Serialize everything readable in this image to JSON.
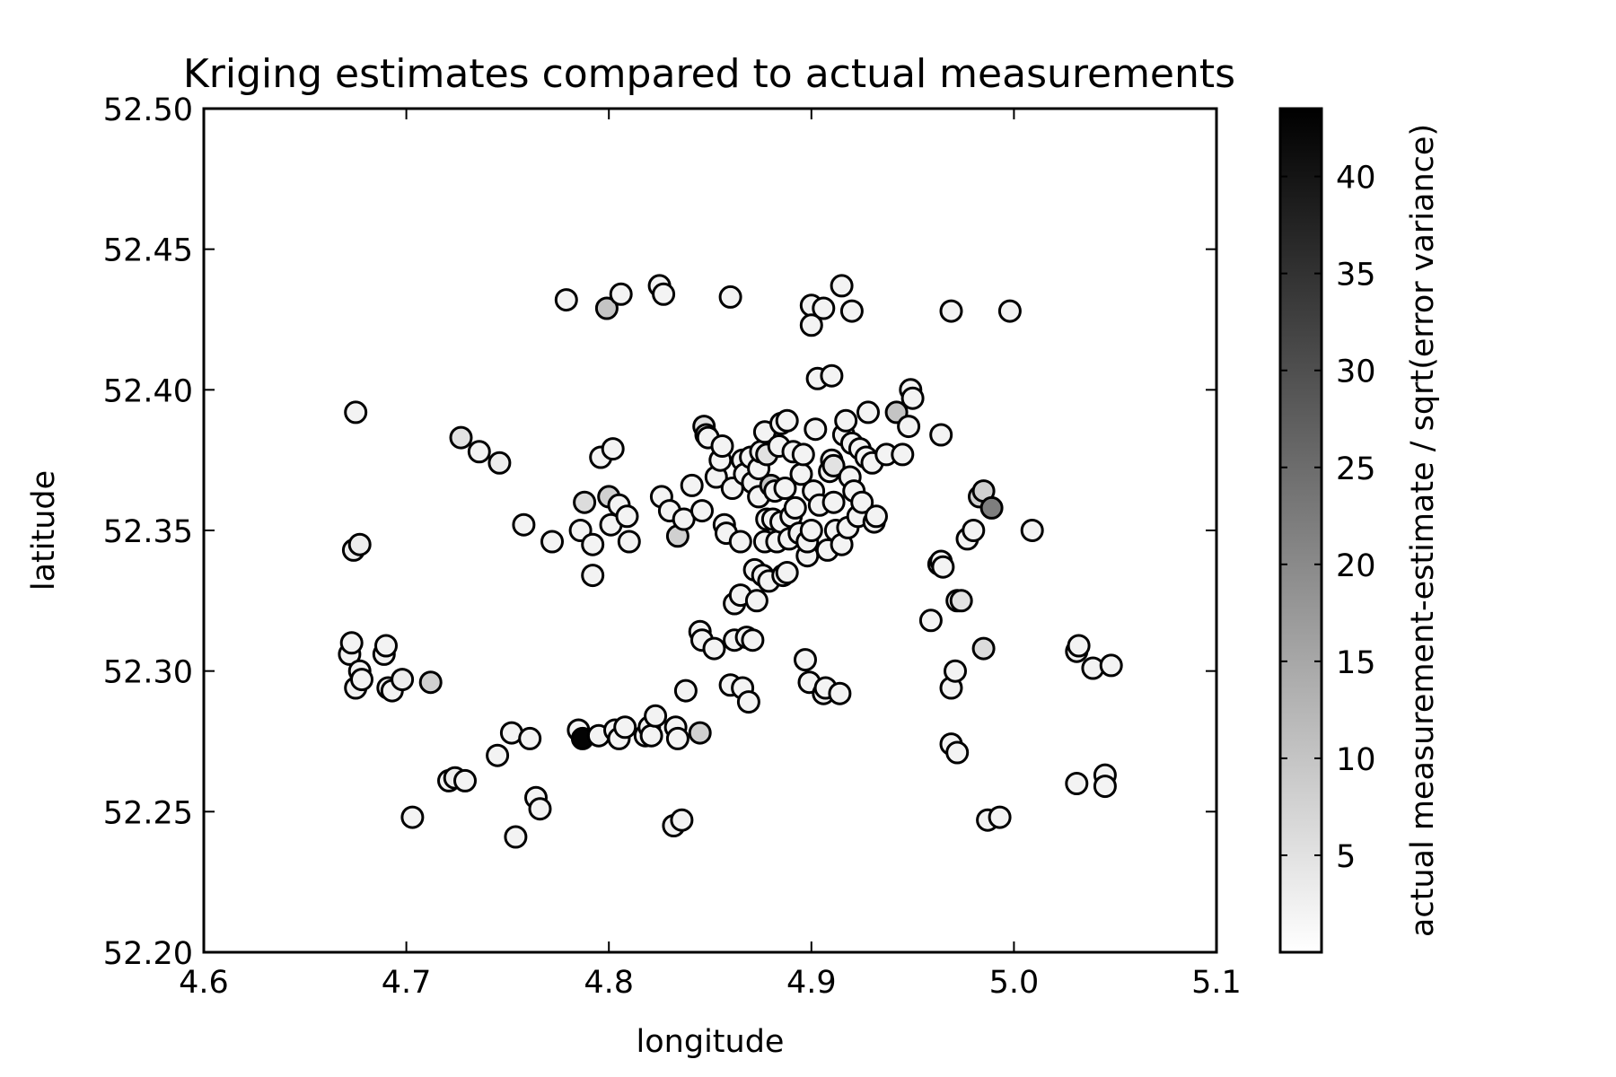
{
  "chart_data": {
    "type": "scatter",
    "title": "Kriging estimates compared to actual measurements",
    "xlabel": "longitude",
    "ylabel": "latitude",
    "xlim": [
      4.6,
      5.1
    ],
    "ylim": [
      52.2,
      52.5
    ],
    "xticks": [
      "4.6",
      "4.7",
      "4.8",
      "4.9",
      "5.0",
      "5.1"
    ],
    "yticks": [
      "52.20",
      "52.25",
      "52.30",
      "52.35",
      "52.40",
      "52.45",
      "52.50"
    ],
    "grid": false,
    "colormap": "gray_r",
    "marker_edge_color": "#000000",
    "colorbar": {
      "label": "actual measurement-estimate / sqrt(error variance)",
      "range": [
        0,
        43.5
      ],
      "ticks": [
        "5",
        "10",
        "15",
        "20",
        "25",
        "30",
        "35",
        "40"
      ]
    },
    "points": [
      [
        4.675,
        52.392,
        2
      ],
      [
        4.674,
        52.343,
        3
      ],
      [
        4.677,
        52.345,
        3
      ],
      [
        4.672,
        52.306,
        2
      ],
      [
        4.673,
        52.31,
        2
      ],
      [
        4.675,
        52.294,
        2
      ],
      [
        4.677,
        52.3,
        2
      ],
      [
        4.678,
        52.297,
        2
      ],
      [
        4.689,
        52.306,
        2
      ],
      [
        4.69,
        52.309,
        2
      ],
      [
        4.691,
        52.294,
        2
      ],
      [
        4.693,
        52.293,
        2
      ],
      [
        4.698,
        52.297,
        3
      ],
      [
        4.712,
        52.296,
        8
      ],
      [
        4.703,
        52.248,
        2
      ],
      [
        4.721,
        52.261,
        2
      ],
      [
        4.724,
        52.262,
        3
      ],
      [
        4.729,
        52.261,
        2
      ],
      [
        4.727,
        52.383,
        5
      ],
      [
        4.736,
        52.378,
        2
      ],
      [
        4.746,
        52.374,
        3
      ],
      [
        4.745,
        52.27,
        2
      ],
      [
        4.752,
        52.278,
        2
      ],
      [
        4.754,
        52.241,
        2
      ],
      [
        4.758,
        52.352,
        2
      ],
      [
        4.761,
        52.276,
        2
      ],
      [
        4.764,
        52.255,
        2
      ],
      [
        4.766,
        52.251,
        2
      ],
      [
        4.772,
        52.346,
        2
      ],
      [
        4.779,
        52.432,
        2
      ],
      [
        4.785,
        52.279,
        2
      ],
      [
        4.786,
        52.35,
        2
      ],
      [
        4.787,
        52.276,
        43
      ],
      [
        4.788,
        52.36,
        6
      ],
      [
        4.792,
        52.334,
        2
      ],
      [
        4.792,
        52.345,
        2
      ],
      [
        4.795,
        52.277,
        2
      ],
      [
        4.796,
        52.376,
        2
      ],
      [
        4.799,
        52.429,
        10
      ],
      [
        4.8,
        52.362,
        8
      ],
      [
        4.801,
        52.352,
        2
      ],
      [
        4.802,
        52.379,
        2
      ],
      [
        4.803,
        52.279,
        2
      ],
      [
        4.805,
        52.276,
        2
      ],
      [
        4.805,
        52.359,
        2
      ],
      [
        4.806,
        52.434,
        2
      ],
      [
        4.808,
        52.28,
        2
      ],
      [
        4.809,
        52.355,
        2
      ],
      [
        4.81,
        52.346,
        2
      ],
      [
        4.818,
        52.277,
        2
      ],
      [
        4.82,
        52.28,
        2
      ],
      [
        4.821,
        52.277,
        2
      ],
      [
        4.823,
        52.284,
        2
      ],
      [
        4.825,
        52.437,
        2
      ],
      [
        4.826,
        52.362,
        2
      ],
      [
        4.827,
        52.434,
        2
      ],
      [
        4.83,
        52.357,
        2
      ],
      [
        4.832,
        52.245,
        2
      ],
      [
        4.833,
        52.28,
        2
      ],
      [
        4.834,
        52.348,
        8
      ],
      [
        4.834,
        52.276,
        2
      ],
      [
        4.836,
        52.247,
        2
      ],
      [
        4.838,
        52.293,
        2
      ],
      [
        4.837,
        52.354,
        2
      ],
      [
        4.841,
        52.366,
        2
      ],
      [
        4.845,
        52.314,
        2
      ],
      [
        4.845,
        52.278,
        8
      ],
      [
        4.846,
        52.311,
        2
      ],
      [
        4.846,
        52.357,
        2
      ],
      [
        4.847,
        52.387,
        5
      ],
      [
        4.848,
        52.384,
        2
      ],
      [
        4.849,
        52.383,
        2
      ],
      [
        4.852,
        52.308,
        2
      ],
      [
        4.853,
        52.369,
        2
      ],
      [
        4.855,
        52.375,
        2
      ],
      [
        4.856,
        52.38,
        2
      ],
      [
        4.857,
        52.352,
        2
      ],
      [
        4.858,
        52.349,
        2
      ],
      [
        4.86,
        52.433,
        2
      ],
      [
        4.86,
        52.295,
        2
      ],
      [
        4.861,
        52.365,
        2
      ],
      [
        4.862,
        52.311,
        2
      ],
      [
        4.862,
        52.324,
        2
      ],
      [
        4.865,
        52.327,
        2
      ],
      [
        4.865,
        52.346,
        2
      ],
      [
        4.866,
        52.294,
        2
      ],
      [
        4.866,
        52.375,
        2
      ],
      [
        4.867,
        52.37,
        2
      ],
      [
        4.868,
        52.312,
        2
      ],
      [
        4.869,
        52.289,
        2
      ],
      [
        4.87,
        52.376,
        2
      ],
      [
        4.871,
        52.311,
        2
      ],
      [
        4.871,
        52.367,
        2
      ],
      [
        4.872,
        52.336,
        2
      ],
      [
        4.873,
        52.325,
        2
      ],
      [
        4.874,
        52.372,
        2
      ],
      [
        4.874,
        52.362,
        2
      ],
      [
        4.875,
        52.378,
        2
      ],
      [
        4.876,
        52.334,
        2
      ],
      [
        4.877,
        52.385,
        2
      ],
      [
        4.877,
        52.346,
        2
      ],
      [
        4.878,
        52.354,
        2
      ],
      [
        4.878,
        52.377,
        5
      ],
      [
        4.879,
        52.332,
        2
      ],
      [
        4.88,
        52.366,
        10
      ],
      [
        4.881,
        52.354,
        2
      ],
      [
        4.882,
        52.364,
        2
      ],
      [
        4.883,
        52.346,
        2
      ],
      [
        4.884,
        52.38,
        2
      ],
      [
        4.885,
        52.353,
        2
      ],
      [
        4.885,
        52.388,
        2
      ],
      [
        4.886,
        52.334,
        2
      ],
      [
        4.887,
        52.365,
        2
      ],
      [
        4.888,
        52.389,
        2
      ],
      [
        4.888,
        52.335,
        2
      ],
      [
        4.889,
        52.347,
        2
      ],
      [
        4.89,
        52.355,
        2
      ],
      [
        4.891,
        52.378,
        2
      ],
      [
        4.892,
        52.358,
        2
      ],
      [
        4.894,
        52.349,
        2
      ],
      [
        4.895,
        52.37,
        2
      ],
      [
        4.896,
        52.377,
        2
      ],
      [
        4.897,
        52.304,
        2
      ],
      [
        4.898,
        52.341,
        2
      ],
      [
        4.898,
        52.346,
        2
      ],
      [
        4.899,
        52.296,
        2
      ],
      [
        4.9,
        52.35,
        2
      ],
      [
        4.9,
        52.43,
        2
      ],
      [
        4.9,
        52.423,
        2
      ],
      [
        4.901,
        52.364,
        2
      ],
      [
        4.902,
        52.386,
        2
      ],
      [
        4.903,
        52.404,
        2
      ],
      [
        4.904,
        52.359,
        2
      ],
      [
        4.906,
        52.429,
        2
      ],
      [
        4.906,
        52.292,
        2
      ],
      [
        4.907,
        52.294,
        2
      ],
      [
        4.908,
        52.343,
        2
      ],
      [
        4.909,
        52.371,
        2
      ],
      [
        4.91,
        52.405,
        2
      ],
      [
        4.91,
        52.375,
        2
      ],
      [
        4.911,
        52.36,
        2
      ],
      [
        4.911,
        52.373,
        5
      ],
      [
        4.912,
        52.35,
        2
      ],
      [
        4.914,
        52.292,
        2
      ],
      [
        4.915,
        52.437,
        2
      ],
      [
        4.915,
        52.345,
        2
      ],
      [
        4.916,
        52.384,
        2
      ],
      [
        4.917,
        52.389,
        2
      ],
      [
        4.918,
        52.351,
        2
      ],
      [
        4.919,
        52.369,
        2
      ],
      [
        4.92,
        52.428,
        2
      ],
      [
        4.92,
        52.381,
        2
      ],
      [
        4.921,
        52.364,
        2
      ],
      [
        4.923,
        52.355,
        2
      ],
      [
        4.924,
        52.379,
        2
      ],
      [
        4.925,
        52.36,
        2
      ],
      [
        4.927,
        52.376,
        2
      ],
      [
        4.928,
        52.392,
        2
      ],
      [
        4.93,
        52.374,
        2
      ],
      [
        4.931,
        52.353,
        2
      ],
      [
        4.932,
        52.355,
        2
      ],
      [
        4.937,
        52.377,
        2
      ],
      [
        4.942,
        52.392,
        10
      ],
      [
        4.945,
        52.377,
        2
      ],
      [
        4.948,
        52.387,
        2
      ],
      [
        4.949,
        52.4,
        2
      ],
      [
        4.95,
        52.397,
        2
      ],
      [
        4.959,
        52.318,
        2
      ],
      [
        4.963,
        52.338,
        2
      ],
      [
        4.964,
        52.339,
        2
      ],
      [
        4.964,
        52.384,
        2
      ],
      [
        4.965,
        52.337,
        2
      ],
      [
        4.969,
        52.428,
        2
      ],
      [
        4.969,
        52.294,
        2
      ],
      [
        4.969,
        52.274,
        2
      ],
      [
        4.971,
        52.3,
        2
      ],
      [
        4.972,
        52.271,
        2
      ],
      [
        4.972,
        52.325,
        2
      ],
      [
        4.974,
        52.325,
        5
      ],
      [
        4.977,
        52.347,
        2
      ],
      [
        4.98,
        52.35,
        2
      ],
      [
        4.983,
        52.362,
        8
      ],
      [
        4.985,
        52.364,
        8
      ],
      [
        4.985,
        52.308,
        6
      ],
      [
        4.987,
        52.247,
        2
      ],
      [
        4.989,
        52.358,
        22
      ],
      [
        4.993,
        52.248,
        2
      ],
      [
        4.998,
        52.428,
        2
      ],
      [
        5.009,
        52.35,
        2
      ],
      [
        5.031,
        52.26,
        2
      ],
      [
        5.031,
        52.307,
        2
      ],
      [
        5.032,
        52.309,
        2
      ],
      [
        5.039,
        52.301,
        2
      ],
      [
        5.045,
        52.263,
        2
      ],
      [
        5.045,
        52.259,
        2
      ],
      [
        5.048,
        52.302,
        2
      ]
    ]
  }
}
